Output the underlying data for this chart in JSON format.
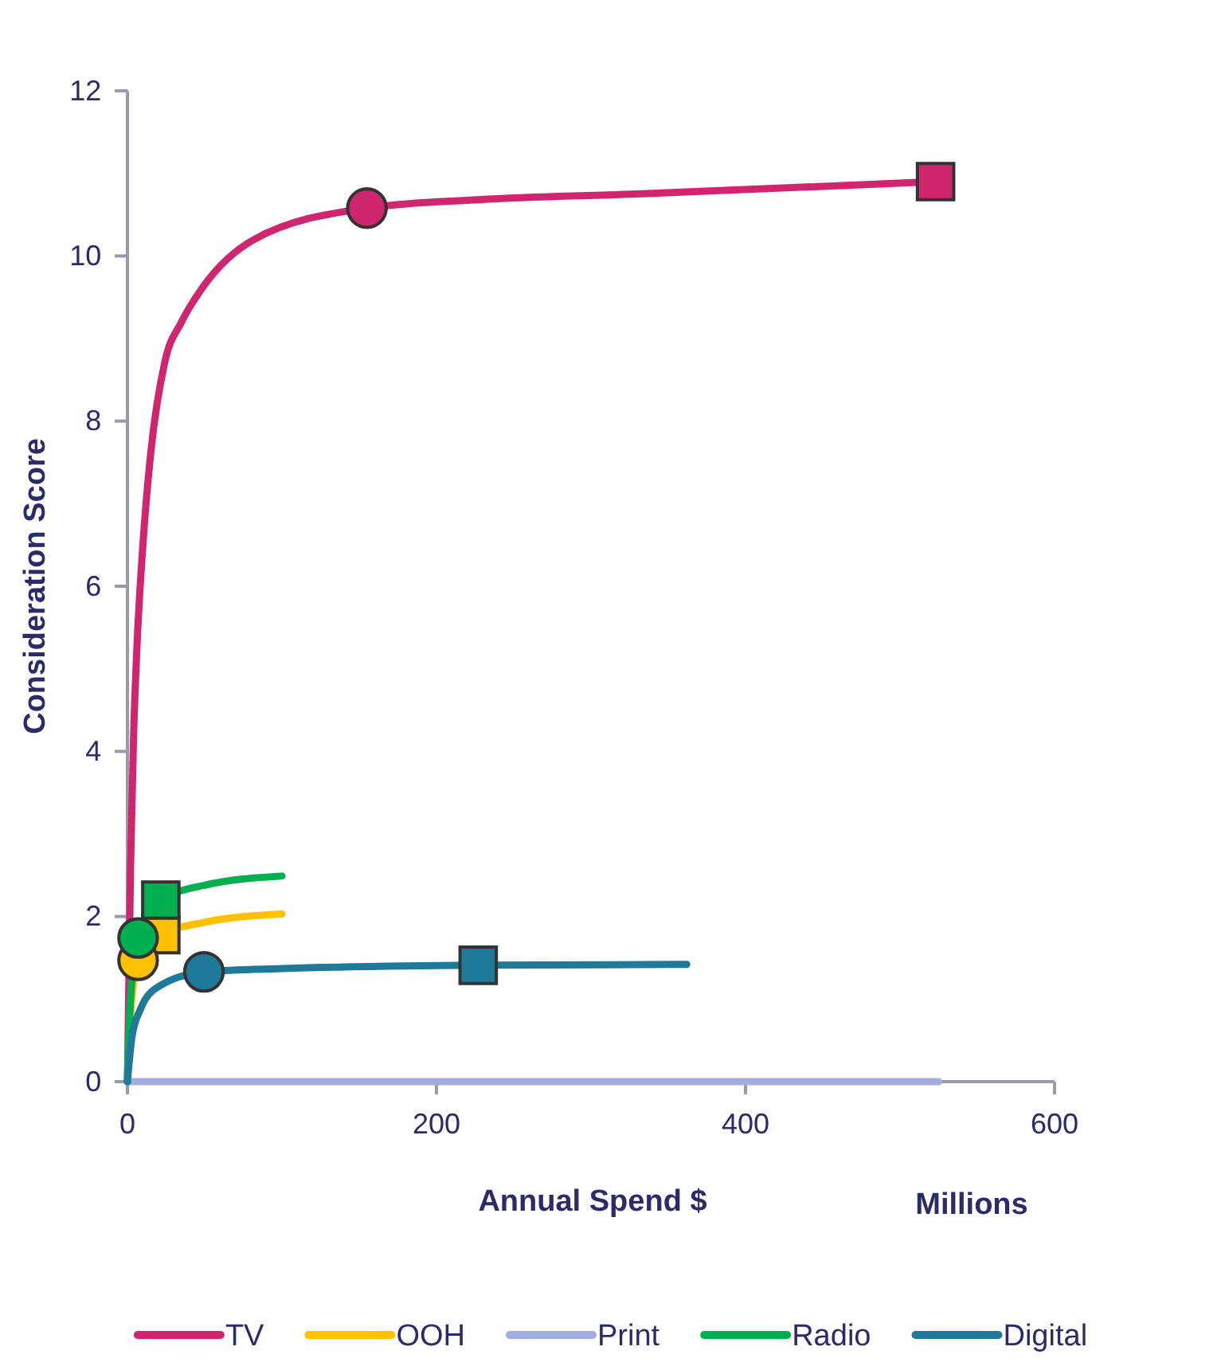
{
  "chart_data": {
    "type": "line",
    "xlabel": "Annual Spend $",
    "ylabel": "Consideration Score",
    "annotations": [
      "Millions"
    ],
    "xlim": [
      0,
      600
    ],
    "xticks": [
      0,
      200,
      400,
      600
    ],
    "ylim": [
      0,
      12
    ],
    "yticks": [
      0,
      2,
      4,
      6,
      8,
      10,
      12
    ],
    "grid": false,
    "legend": "bottom",
    "marker": "none",
    "line_style": "solid",
    "series": [
      {
        "name": "TV",
        "color": "#d02670",
        "x": [
          0,
          2,
          4,
          6,
          10,
          15,
          24,
          35,
          48,
          82,
          155,
          227,
          330,
          523
        ],
        "values": [
          0,
          2.6,
          4.2,
          5.2,
          6.5,
          7.6,
          8.7,
          9.2,
          9.6,
          10.2,
          10.58,
          10.68,
          10.75,
          10.9
        ]
      },
      {
        "name": "OOH",
        "color": "#ffc000",
        "x": [
          0,
          2,
          7,
          22,
          50,
          100
        ],
        "values": [
          0,
          0.8,
          1.47,
          1.78,
          1.93,
          2.03
        ]
      },
      {
        "name": "Print",
        "color": "#a3acdf",
        "x": [
          0,
          525
        ],
        "values": [
          0,
          0
        ]
      },
      {
        "name": "Radio",
        "color": "#00b050",
        "x": [
          0,
          2,
          7,
          22,
          50,
          100
        ],
        "values": [
          0,
          1.0,
          1.74,
          2.2,
          2.38,
          2.49
        ]
      },
      {
        "name": "Digital",
        "color": "#1f7a99",
        "x": [
          0,
          3,
          8.5,
          20,
          50,
          100,
          227,
          362
        ],
        "values": [
          0,
          0.55,
          0.88,
          1.15,
          1.33,
          1.37,
          1.41,
          1.42
        ]
      },
      {
        "type": "scatter",
        "marker": "square",
        "x": [
          523,
          21.6,
          21.6,
          227
        ],
        "values": [
          10.9,
          1.78,
          2.2,
          1.41
        ],
        "colors": [
          "#d02670",
          "#ffc000",
          "#00b050",
          "#1f7a99"
        ]
      },
      {
        "type": "scatter",
        "marker": "circle",
        "x": [
          155,
          6.9,
          6.9,
          49.5
        ],
        "values": [
          10.58,
          1.47,
          1.74,
          1.33
        ],
        "colors": [
          "#d02670",
          "#ffc000",
          "#00b050",
          "#1f7a99"
        ]
      }
    ]
  }
}
